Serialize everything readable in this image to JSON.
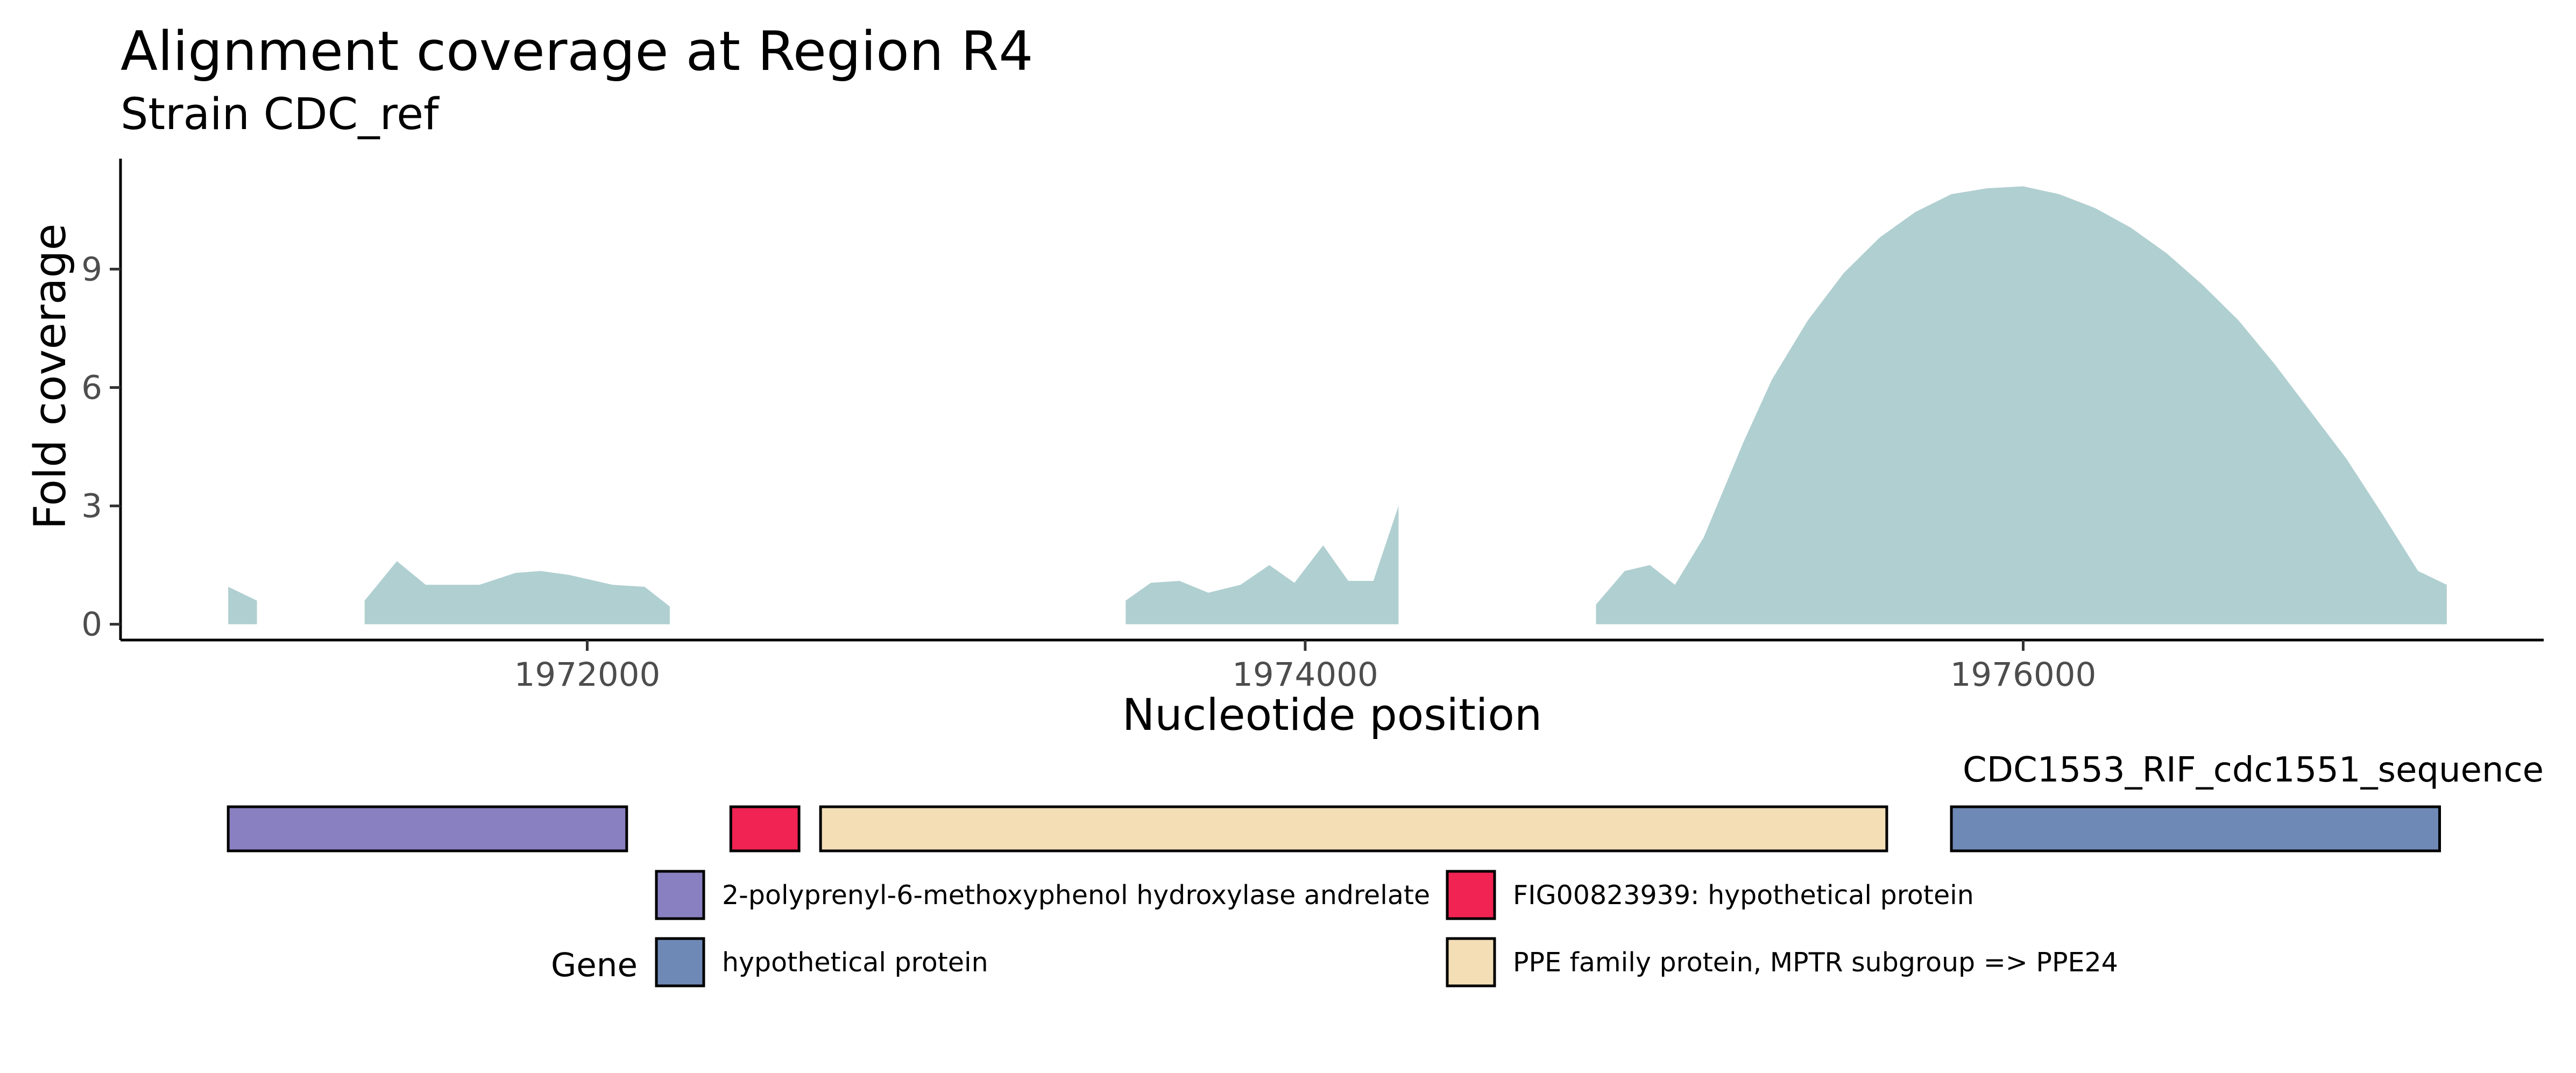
{
  "chart_data": {
    "type": "area",
    "title": "Alignment coverage at Region R4",
    "subtitle": "Strain CDC_ref",
    "xlabel": "Nucleotide position",
    "ylabel": "Fold coverage",
    "xlim": [
      1970700,
      1977450
    ],
    "ylim": [
      -0.4,
      11.8
    ],
    "x_ticks": [
      1972000,
      1974000,
      1976000
    ],
    "x_tick_labels": [
      "1972000",
      "1974000",
      "1976000"
    ],
    "y_ticks": [
      0,
      3,
      6,
      9
    ],
    "y_tick_labels": [
      "0",
      "3",
      "6",
      "9"
    ],
    "grid": false,
    "fill_color": "#b0cfd1",
    "series": [
      {
        "segments": [
          {
            "x": [
              1971000,
              1971080
            ],
            "y": [
              0.95,
              0.6
            ]
          },
          {
            "x": [
              1971380,
              1971470,
              1971550,
              1971700,
              1971800,
              1971870,
              1971950,
              1972070,
              1972160,
              1972230
            ],
            "y": [
              0.6,
              1.6,
              1.0,
              1.0,
              1.3,
              1.35,
              1.25,
              1.0,
              0.95,
              0.45
            ]
          },
          {
            "x": [
              1973500,
              1973570,
              1973650,
              1973730,
              1973820,
              1973900,
              1973970,
              1974050,
              1974120,
              1974190,
              1974260
            ],
            "y": [
              0.6,
              1.05,
              1.1,
              0.8,
              1.0,
              1.5,
              1.05,
              2.0,
              1.1,
              1.1,
              3.0
            ]
          },
          {
            "x": [
              1974810,
              1974890,
              1974960,
              1975030,
              1975110,
              1975220,
              1975300,
              1975400,
              1975500,
              1975600,
              1975700,
              1975800,
              1975900,
              1976000,
              1976100,
              1976200,
              1976300,
              1976400,
              1976500,
              1976600,
              1976700,
              1976800,
              1976900,
              1977000,
              1977100,
              1977180
            ],
            "y": [
              0.5,
              1.35,
              1.5,
              1.0,
              2.2,
              4.6,
              6.2,
              7.7,
              8.9,
              9.8,
              10.45,
              10.9,
              11.05,
              11.1,
              10.9,
              10.55,
              10.05,
              9.4,
              8.6,
              7.7,
              6.6,
              5.4,
              4.2,
              2.8,
              1.35,
              1.0
            ]
          }
        ]
      }
    ],
    "gene_track": {
      "label": "CDC1553_RIF_cdc1551_sequence",
      "genes": [
        {
          "start": 1971000,
          "end": 1972110,
          "category": "2-polyprenyl-6-methoxyphenol hydroxylase andrelate"
        },
        {
          "start": 1972400,
          "end": 1972590,
          "category": "FIG00823939: hypothetical protein"
        },
        {
          "start": 1972650,
          "end": 1975620,
          "category": "PPE family protein, MPTR subgroup => PPE24"
        },
        {
          "start": 1975800,
          "end": 1977160,
          "category": "hypothetical protein"
        }
      ]
    },
    "legend": {
      "title": "Gene",
      "position": "bottom",
      "items": [
        {
          "label": "2-polyprenyl-6-methoxyphenol hydroxylase andrelate",
          "color": "#8880c0"
        },
        {
          "label": "FIG00823939: hypothetical protein",
          "color": "#f02352"
        },
        {
          "label": "hypothetical protein",
          "color": "#6e89b5"
        },
        {
          "label": "PPE family protein, MPTR subgroup => PPE24",
          "color": "#f3deb6"
        }
      ]
    }
  }
}
